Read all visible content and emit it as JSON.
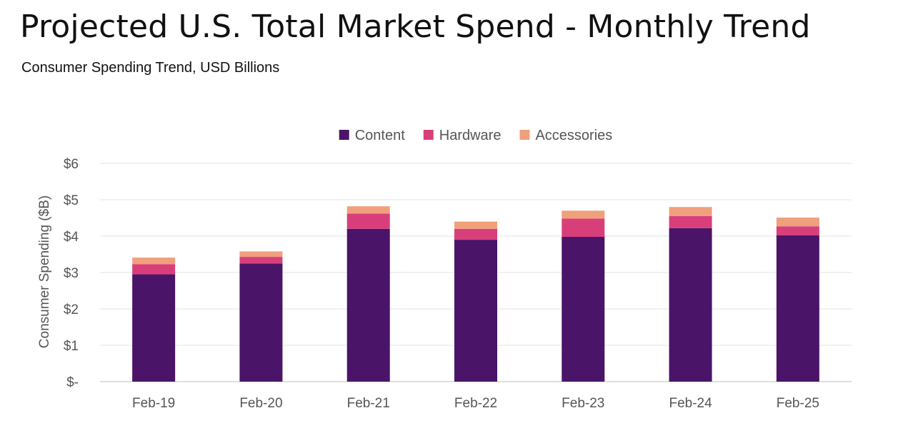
{
  "header": {
    "title": "Projected U.S. Total Market Spend - Monthly Trend",
    "subtitle": "Consumer Spending Trend, USD Billions"
  },
  "chart_data": {
    "type": "bar",
    "stacked": true,
    "categories": [
      "Feb-19",
      "Feb-20",
      "Feb-21",
      "Feb-22",
      "Feb-23",
      "Feb-24",
      "Feb-25"
    ],
    "series": [
      {
        "name": "Content",
        "color": "#4a1468",
        "values": [
          2.95,
          3.25,
          4.2,
          3.9,
          3.98,
          4.22,
          4.02
        ]
      },
      {
        "name": "Hardware",
        "color": "#d83f7a",
        "values": [
          0.28,
          0.18,
          0.42,
          0.3,
          0.5,
          0.33,
          0.25
        ]
      },
      {
        "name": "Accessories",
        "color": "#f0a07c",
        "values": [
          0.18,
          0.15,
          0.2,
          0.2,
          0.22,
          0.25,
          0.24
        ]
      }
    ],
    "ylabel": "Consumer Spending ($B)",
    "xlabel": "",
    "ylim": [
      0,
      6
    ],
    "yticks": [
      0,
      1,
      2,
      3,
      4,
      5,
      6
    ],
    "ytick_labels": [
      "$-",
      "$1",
      "$2",
      "$3",
      "$4",
      "$5",
      "$6"
    ],
    "grid": true,
    "legend_position": "top"
  }
}
